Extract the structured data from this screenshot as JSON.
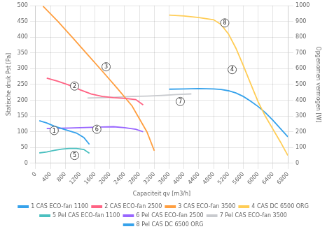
{
  "chart_data": {
    "type": "line",
    "xlabel": "Capaciteit qv [m3/h]",
    "ylabel": "Statische druk Pst [Pa]",
    "y2label": "Opgenomen vermogen [W]",
    "xlim": [
      0,
      6800
    ],
    "xticks": [
      0,
      400,
      800,
      1200,
      1600,
      2000,
      2400,
      2800,
      3200,
      3600,
      4000,
      4400,
      4800,
      5200,
      5600,
      6000,
      6400,
      6800
    ],
    "ylim": [
      0,
      500
    ],
    "yticks": [
      0,
      50,
      100,
      150,
      200,
      250,
      300,
      350,
      400,
      450,
      500
    ],
    "y2lim": [
      0,
      1000
    ],
    "y2ticks": [
      0,
      100,
      200,
      300,
      400,
      500,
      600,
      700,
      800,
      900,
      1000
    ],
    "grid": true,
    "legend": "bottom",
    "series": [
      {
        "name": "1 CAS ECO-fan 1100",
        "x": [
          100,
          300,
          500,
          700,
          900,
          1100,
          1300,
          1450
        ],
        "values": [
          135,
          128,
          118,
          110,
          103,
          96,
          82,
          60
        ]
      },
      {
        "name": "2 CAS ECO-fan 2500",
        "x": [
          300,
          600,
          900,
          1200,
          1500,
          1800,
          2100,
          2400,
          2700,
          2900
        ],
        "values": [
          270,
          260,
          248,
          233,
          220,
          212,
          208,
          206,
          202,
          185
        ]
      },
      {
        "name": "3 CAS ECO-fan 3500",
        "x": [
          200,
          600,
          1000,
          1400,
          1800,
          2200,
          2600,
          3000,
          3200
        ],
        "values": [
          498,
          450,
          398,
          345,
          292,
          238,
          182,
          100,
          40
        ]
      },
      {
        "name": "4 CAS DC 6500 ORG",
        "x": [
          3600,
          4000,
          4400,
          4800,
          5000,
          5200,
          5400,
          5600,
          5800,
          6000,
          6200,
          6400,
          6600,
          6800
        ],
        "values": [
          470,
          467,
          462,
          455,
          440,
          410,
          365,
          310,
          252,
          195,
          148,
          108,
          68,
          25
        ]
      },
      {
        "name": "5 Pel CAS ECO-fan 1100",
        "x": [
          100,
          300,
          500,
          700,
          900,
          1100,
          1300,
          1450
        ],
        "values": [
          33,
          36,
          41,
          45,
          47,
          47,
          44,
          32
        ]
      },
      {
        "name": "6 Pel CAS ECO-fan 2500",
        "x": [
          300,
          600,
          900,
          1200,
          1500,
          1800,
          2100,
          2400,
          2700,
          2900
        ],
        "values": [
          110,
          111,
          112,
          113,
          114,
          115,
          116,
          113,
          108,
          100
        ]
      },
      {
        "name": "7 Pel CAS ECO-fan 3500",
        "x": [
          1400,
          1800,
          2200,
          2600,
          3000,
          3400,
          3800,
          4200
        ],
        "values": [
          207,
          208,
          210,
          212,
          213,
          215,
          218,
          220
        ]
      },
      {
        "name": "8 Pel CAS DC 6500 ORG",
        "axis": "y2",
        "x": [
          3600,
          4000,
          4400,
          4800,
          5000,
          5200,
          5400,
          5600,
          5800,
          6000,
          6200,
          6400,
          6600,
          6800
        ],
        "values": [
          470,
          472,
          474,
          472,
          468,
          460,
          446,
          424,
          394,
          360,
          320,
          272,
          220,
          168
        ]
      }
    ],
    "annotations": [
      {
        "text": "1",
        "x": 500,
        "y": 104
      },
      {
        "text": "2",
        "x": 1050,
        "y": 245
      },
      {
        "text": "3",
        "x": 1900,
        "y": 306
      },
      {
        "text": "4",
        "x": 5300,
        "y": 297
      },
      {
        "text": "5",
        "x": 1050,
        "y": 25
      },
      {
        "text": "6",
        "x": 1650,
        "y": 108
      },
      {
        "text": "7",
        "x": 3900,
        "y": 196
      },
      {
        "text": "8",
        "x": 5100,
        "y": 445
      }
    ]
  }
}
